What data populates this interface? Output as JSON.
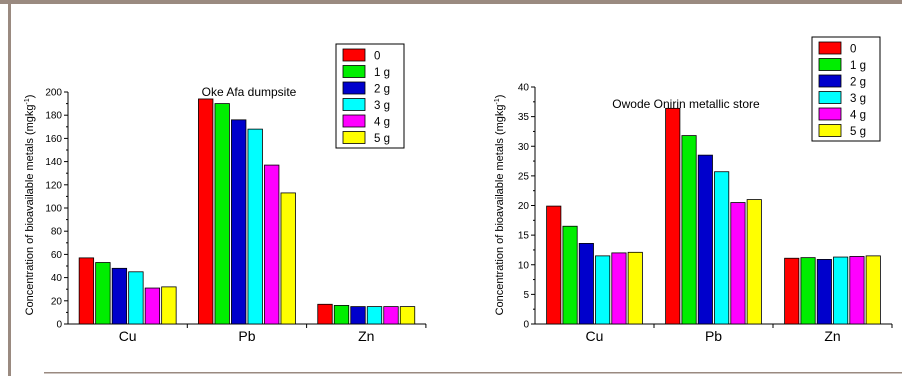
{
  "colors": {
    "frame": "#9a8a80",
    "series": [
      "#ff0000",
      "#00ee00",
      "#0000cc",
      "#00ffff",
      "#ff00ff",
      "#ffff00"
    ]
  },
  "legend_labels": [
    "0",
    "1 g",
    "2 g",
    "3 g",
    "4 g",
    "5 g"
  ],
  "chart_data": [
    {
      "type": "bar",
      "title": "Oke Afa dumpsite",
      "ylabel": "Concentration of bioavailable metals (mgkg",
      "ylabel_sup": "-1",
      "ylabel_close": ")",
      "xlabel": "",
      "categories": [
        "Cu",
        "Pb",
        "Zn"
      ],
      "ylim": [
        0,
        200
      ],
      "yticks": [
        0,
        20,
        40,
        60,
        80,
        100,
        120,
        140,
        160,
        180,
        200
      ],
      "grid": false,
      "legend": "top-right",
      "series": [
        {
          "name": "0",
          "values": [
            57,
            194,
            17
          ]
        },
        {
          "name": "1 g",
          "values": [
            53,
            190,
            16
          ]
        },
        {
          "name": "2 g",
          "values": [
            48,
            176,
            15
          ]
        },
        {
          "name": "3 g",
          "values": [
            45,
            168,
            15
          ]
        },
        {
          "name": "4 g",
          "values": [
            31,
            137,
            15
          ]
        },
        {
          "name": "5 g",
          "values": [
            32,
            113,
            15
          ]
        }
      ]
    },
    {
      "type": "bar",
      "title": "Owode Onirin metallic store",
      "ylabel": "Concentration of bioavailable metals (mgkg",
      "ylabel_sup": "-1",
      "ylabel_close": ")",
      "xlabel": "",
      "categories": [
        "Cu",
        "Pb",
        "Zn"
      ],
      "ylim": [
        0,
        40
      ],
      "yticks": [
        0,
        5,
        10,
        15,
        20,
        25,
        30,
        35,
        40
      ],
      "grid": false,
      "legend": "top-right",
      "series": [
        {
          "name": "0",
          "values": [
            19.9,
            36.4,
            11.1
          ]
        },
        {
          "name": "1 g",
          "values": [
            16.5,
            31.8,
            11.2
          ]
        },
        {
          "name": "2 g",
          "values": [
            13.6,
            28.5,
            10.9
          ]
        },
        {
          "name": "3 g",
          "values": [
            11.5,
            25.7,
            11.3
          ]
        },
        {
          "name": "4 g",
          "values": [
            12.0,
            20.5,
            11.4
          ]
        },
        {
          "name": "5 g",
          "values": [
            12.1,
            21.0,
            11.5
          ]
        }
      ]
    }
  ]
}
